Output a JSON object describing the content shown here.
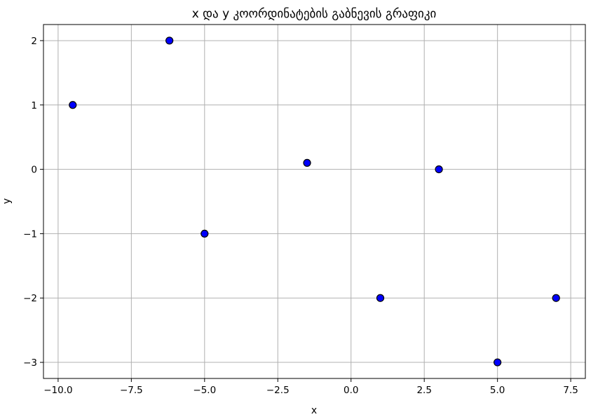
{
  "chart_data": {
    "type": "scatter",
    "title": "x და y კოორდინატების გაბნევის გრაფიკი",
    "xlabel": "x",
    "ylabel": "y",
    "xlim": [
      -10.5,
      8.0
    ],
    "ylim": [
      -3.25,
      2.25
    ],
    "xticks": [
      -10.0,
      -7.5,
      -5.0,
      -2.5,
      0.0,
      2.5,
      5.0,
      7.5
    ],
    "xtick_labels": [
      "−10.0",
      "−7.5",
      "−5.0",
      "−2.5",
      "0.0",
      "2.5",
      "5.0",
      "7.5"
    ],
    "yticks": [
      -3,
      -2,
      -1,
      0,
      1,
      2
    ],
    "ytick_labels": [
      "−3",
      "−2",
      "−1",
      "0",
      "1",
      "2"
    ],
    "grid": true,
    "marker_color": "#0000ff",
    "marker_edge_color": "#000000",
    "points": [
      {
        "x": -9.5,
        "y": 1.0
      },
      {
        "x": -6.2,
        "y": 2.0
      },
      {
        "x": -5.0,
        "y": -1.0
      },
      {
        "x": -1.5,
        "y": 0.1
      },
      {
        "x": 1.0,
        "y": -2.0
      },
      {
        "x": 3.0,
        "y": 0.0
      },
      {
        "x": 5.0,
        "y": -3.0
      },
      {
        "x": 7.0,
        "y": -2.0
      }
    ]
  }
}
